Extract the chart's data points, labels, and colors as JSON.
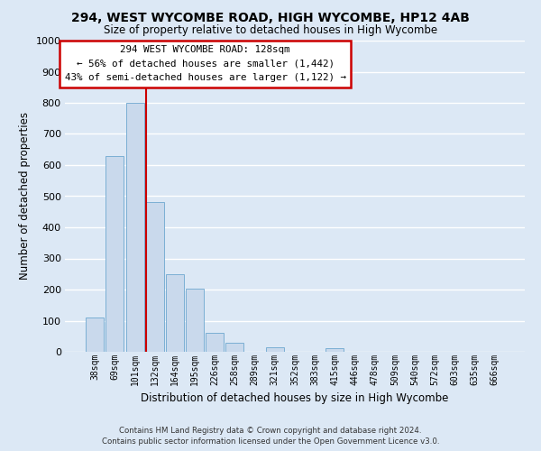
{
  "title1": "294, WEST WYCOMBE ROAD, HIGH WYCOMBE, HP12 4AB",
  "title2": "Size of property relative to detached houses in High Wycombe",
  "xlabel": "Distribution of detached houses by size in High Wycombe",
  "ylabel": "Number of detached properties",
  "bar_labels": [
    "38sqm",
    "69sqm",
    "101sqm",
    "132sqm",
    "164sqm",
    "195sqm",
    "226sqm",
    "258sqm",
    "289sqm",
    "321sqm",
    "352sqm",
    "383sqm",
    "415sqm",
    "446sqm",
    "478sqm",
    "509sqm",
    "540sqm",
    "572sqm",
    "603sqm",
    "635sqm",
    "666sqm"
  ],
  "bar_values": [
    110,
    630,
    800,
    480,
    248,
    203,
    62,
    28,
    0,
    15,
    0,
    0,
    12,
    0,
    0,
    0,
    0,
    0,
    0,
    0,
    0
  ],
  "bar_color": "#c9d9ec",
  "bar_edge_color": "#7bafd4",
  "vline_x_index": 3,
  "vline_color": "#cc0000",
  "ylim": [
    0,
    1000
  ],
  "yticks": [
    0,
    100,
    200,
    300,
    400,
    500,
    600,
    700,
    800,
    900,
    1000
  ],
  "annotation_title": "294 WEST WYCOMBE ROAD: 128sqm",
  "annotation_line1": "← 56% of detached houses are smaller (1,442)",
  "annotation_line2": "43% of semi-detached houses are larger (1,122) →",
  "annotation_box_facecolor": "#ffffff",
  "annotation_box_edgecolor": "#cc0000",
  "footer1": "Contains HM Land Registry data © Crown copyright and database right 2024.",
  "footer2": "Contains public sector information licensed under the Open Government Licence v3.0.",
  "background_color": "#dce8f5",
  "grid_color": "#ffffff"
}
